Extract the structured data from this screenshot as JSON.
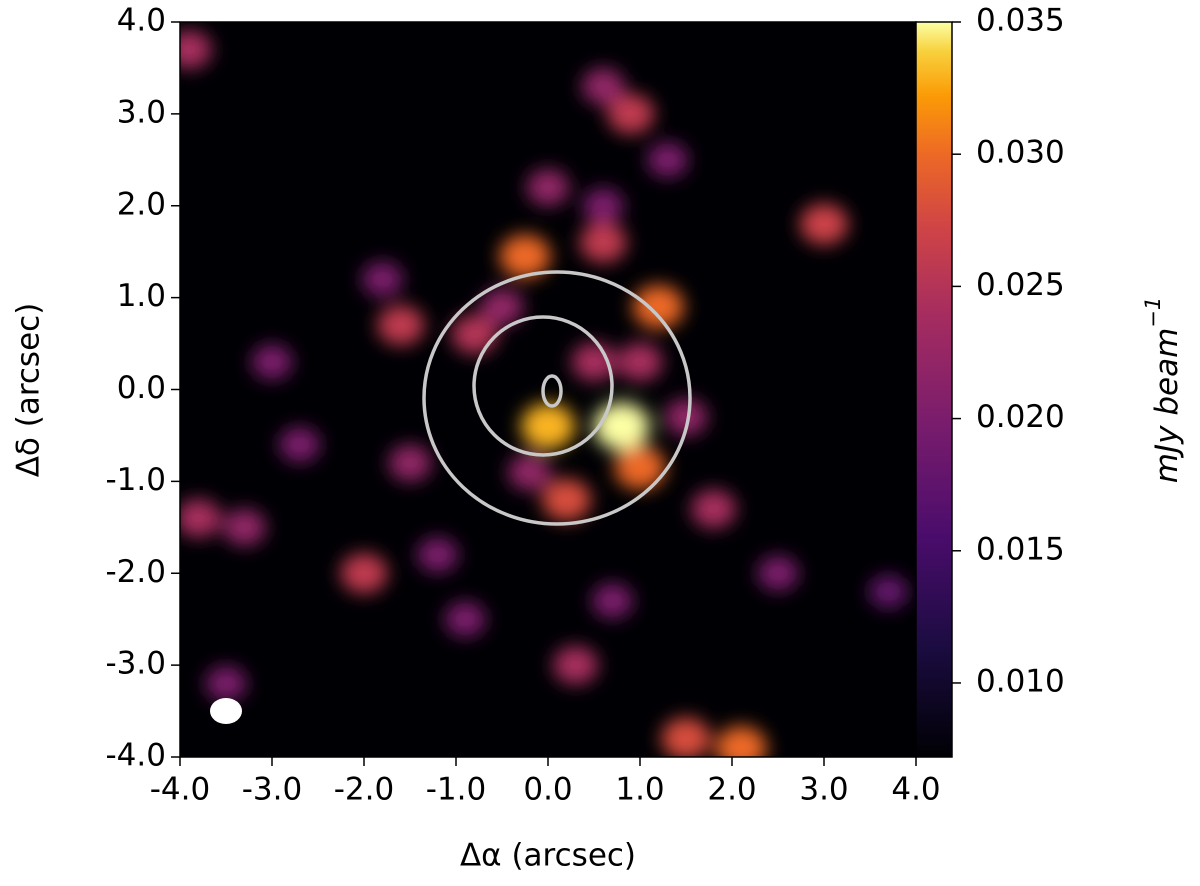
{
  "chart_data": {
    "type": "heatmap",
    "xlabel": "Δα (arcsec)",
    "ylabel": "Δδ (arcsec)",
    "colorbar_label": "mJy beam",
    "colorbar_label_exponent": "−1",
    "xlim": [
      -4,
      4
    ],
    "ylim": [
      -4,
      4
    ],
    "xticks": [
      {
        "value": -4,
        "label": "-4.0"
      },
      {
        "value": -3,
        "label": "-3.0"
      },
      {
        "value": -2,
        "label": "-2.0"
      },
      {
        "value": -1,
        "label": "-1.0"
      },
      {
        "value": 0,
        "label": "0.0"
      },
      {
        "value": 1,
        "label": "1.0"
      },
      {
        "value": 2,
        "label": "2.0"
      },
      {
        "value": 3,
        "label": "3.0"
      },
      {
        "value": 4,
        "label": "4.0"
      }
    ],
    "yticks": [
      {
        "value": -4,
        "label": "-4.0"
      },
      {
        "value": -3,
        "label": "-3.0"
      },
      {
        "value": -2,
        "label": "-2.0"
      },
      {
        "value": -1,
        "label": "-1.0"
      },
      {
        "value": 0,
        "label": "0.0"
      },
      {
        "value": 1,
        "label": "1.0"
      },
      {
        "value": 2,
        "label": "2.0"
      },
      {
        "value": 3,
        "label": "3.0"
      },
      {
        "value": 4,
        "label": "4.0"
      }
    ],
    "clim": [
      0.0072,
      0.035
    ],
    "cticks": [
      {
        "value": 0.01,
        "label": "0.010"
      },
      0.015,
      {
        "value": 0.02,
        "label": "0.020"
      },
      0.025,
      {
        "value": 0.03,
        "label": "0.030"
      },
      0.035
    ],
    "colormap": "inferno",
    "clumps": {
      "x": [
        0.8,
        0.0,
        -0.25,
        1.2,
        1.0,
        0.6,
        0.2,
        -0.8,
        -1.6,
        -2.0,
        -3.8,
        -3.3,
        0.9,
        0.6,
        3.0,
        1.8,
        1.5,
        2.1,
        0.3,
        -0.2,
        -1.5,
        -1.2,
        -3.9,
        -3.5,
        0.5,
        1.0,
        -0.5,
        0.0,
        0.6,
        -3.0,
        -2.7,
        1.5,
        1.3,
        2.5,
        3.7,
        -1.8,
        -0.9,
        0.7
      ],
      "y": [
        -0.4,
        -0.4,
        1.45,
        0.9,
        -0.85,
        1.6,
        -1.2,
        0.6,
        0.7,
        -2.0,
        -1.4,
        -1.5,
        3.0,
        3.3,
        1.8,
        -1.3,
        -3.8,
        -3.9,
        -3.0,
        -0.9,
        -0.8,
        -1.8,
        3.7,
        -3.2,
        0.3,
        0.3,
        0.9,
        2.2,
        2.0,
        0.3,
        -0.6,
        -0.3,
        2.5,
        -2.0,
        -2.2,
        1.2,
        -2.5,
        -2.3
      ],
      "values": [
        0.035,
        0.033,
        0.03,
        0.03,
        0.03,
        0.026,
        0.028,
        0.025,
        0.026,
        0.026,
        0.024,
        0.022,
        0.026,
        0.022,
        0.027,
        0.024,
        0.028,
        0.03,
        0.024,
        0.022,
        0.022,
        0.02,
        0.024,
        0.02,
        0.024,
        0.024,
        0.022,
        0.022,
        0.02,
        0.02,
        0.02,
        0.022,
        0.02,
        0.02,
        0.018,
        0.02,
        0.02,
        0.02
      ]
    }
  }
}
